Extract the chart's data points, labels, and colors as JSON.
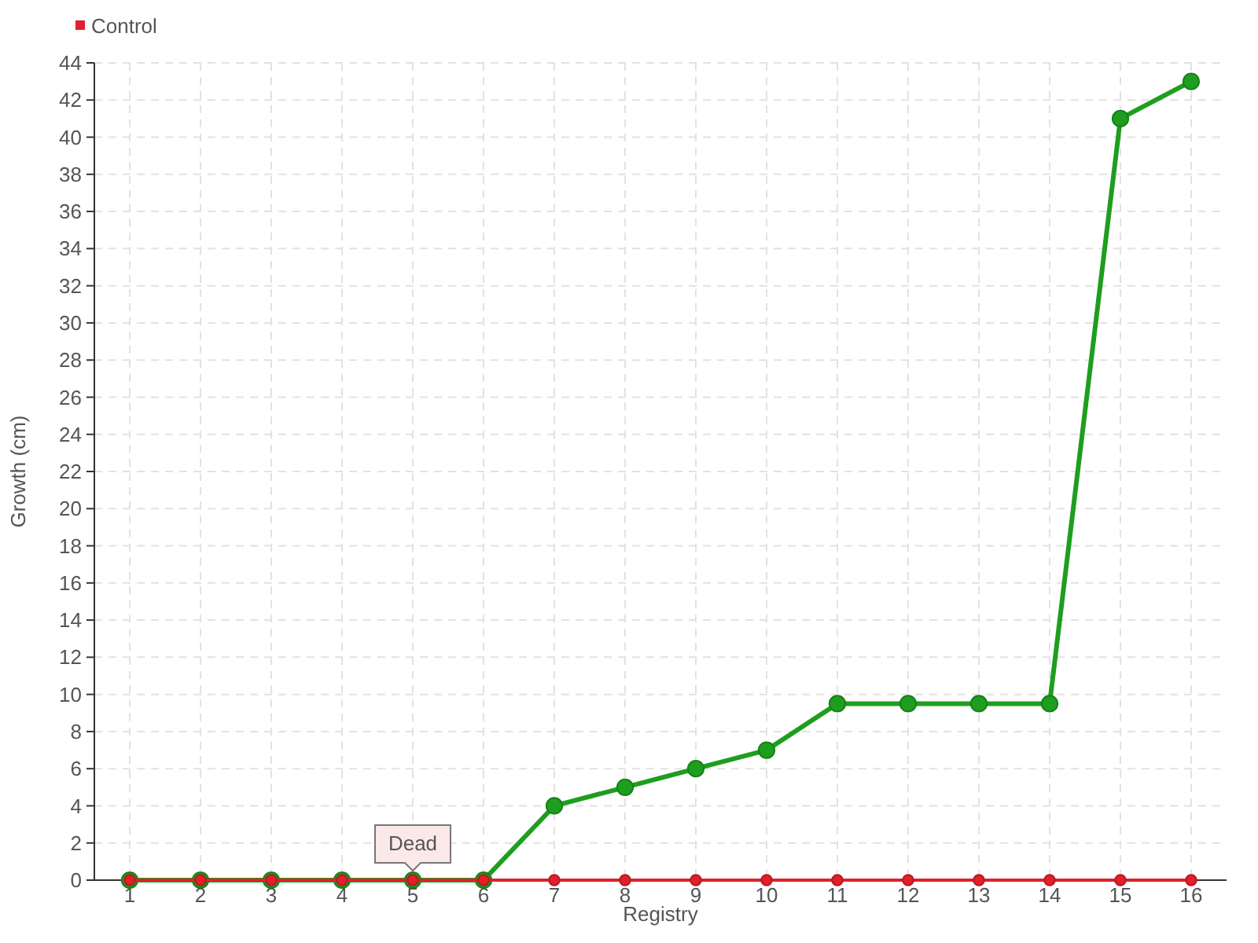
{
  "chart_data": {
    "type": "line",
    "xlabel": "Registry",
    "ylabel": "Growth (cm)",
    "categories": [
      "1",
      "2",
      "3",
      "4",
      "5",
      "6",
      "7",
      "8",
      "9",
      "10",
      "11",
      "12",
      "13",
      "14",
      "15",
      "16"
    ],
    "series": [
      {
        "color": "#1e9e1e",
        "values": [
          0,
          0,
          0,
          0,
          0,
          0,
          4,
          5,
          6,
          7,
          9.5,
          9.5,
          9.5,
          9.5,
          41,
          43
        ]
      },
      {
        "name": "Control",
        "color": "#e0202a",
        "values": [
          0,
          0,
          0,
          0,
          0,
          0,
          0,
          0,
          0,
          0,
          0,
          0,
          0,
          0,
          0,
          0
        ]
      }
    ],
    "ylim": [
      0,
      44
    ],
    "yticks": [
      0,
      2,
      4,
      6,
      8,
      10,
      12,
      14,
      16,
      18,
      20,
      22,
      24,
      26,
      28,
      30,
      32,
      34,
      36,
      38,
      40,
      42,
      44
    ],
    "grid": true,
    "legend": "top left",
    "marker": "circle",
    "annotations": [
      {
        "text": "Dead",
        "x": "5",
        "y": 0
      }
    ]
  }
}
